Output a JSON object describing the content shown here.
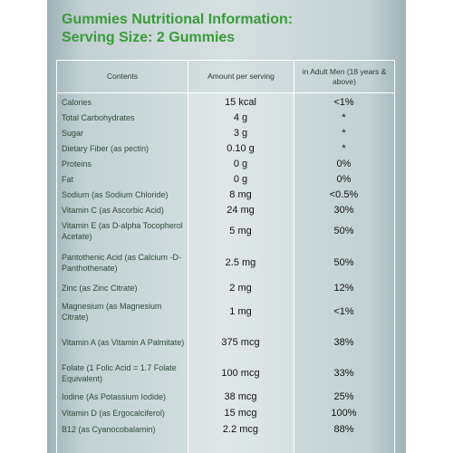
{
  "title": {
    "line1": "Gummies Nutritional Information:",
    "line2": "Serving Size: 2 Gummies"
  },
  "table": {
    "headers": {
      "contents": "Contents",
      "amount": "Amount per serving",
      "dv": "in Adult Men (18 years & above)"
    },
    "rows": [
      {
        "name": "Calories",
        "amount": "15 kcal",
        "dv": "<1%"
      },
      {
        "name": "Total Carbohydrates",
        "amount": "4 g",
        "dv": "*"
      },
      {
        "name": "Sugar",
        "amount": "3 g",
        "dv": "*"
      },
      {
        "name": "Dietary Fiber (as pectin)",
        "amount": "0.10 g",
        "dv": "*"
      },
      {
        "name": "Proteins",
        "amount": "0 g",
        "dv": "0%"
      },
      {
        "name": "Fat",
        "amount": "0 g",
        "dv": "0%"
      },
      {
        "name": "Sodium (as Sodium Chloride)",
        "amount": "8 mg",
        "dv": "<0.5%"
      },
      {
        "name": "Vitamin C (as Ascorbic Acid)",
        "amount": "24 mg",
        "dv": "30%"
      },
      {
        "name": "Vitamin E (as D-alpha Tocopherol Acetate)",
        "amount": "5 mg",
        "dv": "50%"
      },
      {
        "name": "Pantothenic Acid (as Calcium -D-Panthothenate)",
        "amount": "2.5 mg",
        "dv": "50%"
      },
      {
        "name": "Zinc (as Zinc Citrate)",
        "amount": "2 mg",
        "dv": "12%"
      },
      {
        "name": "Magnesium (as Magnesium Citrate)",
        "amount": "1 mg",
        "dv": "<1%"
      },
      {
        "name": "Vitamin A (as Vitamin A Palmitate)",
        "amount": "375 mcg",
        "dv": "38%"
      },
      {
        "name": "Folate (1 Folic Acid = 1.7 Folate Equivalent)",
        "amount": "100 mcg",
        "dv": "33%"
      },
      {
        "name": "Iodine (As Potassium Iodide)",
        "amount": "38 mcg",
        "dv": "25%"
      },
      {
        "name": "Vitamin D (as Ergocalciferol)",
        "amount": "15 mcg",
        "dv": "100%"
      },
      {
        "name": "B12 (as Cyanocobalamin)",
        "amount": "2.2 mcg",
        "dv": "88%"
      }
    ]
  }
}
